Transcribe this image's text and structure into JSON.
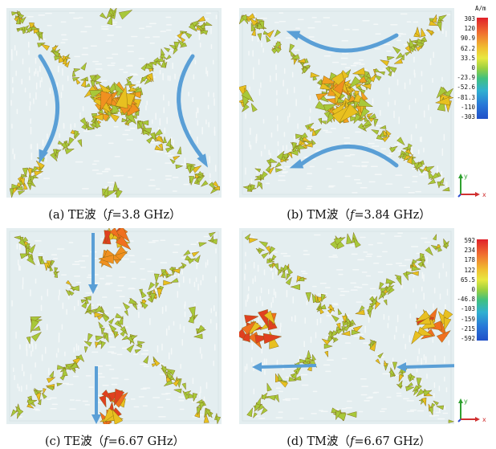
{
  "panels": [
    {
      "id": "a",
      "caption_prefix": "(a) TE波（",
      "f_symbol": "f",
      "caption_suffix": "=3.8 GHz）"
    },
    {
      "id": "b",
      "caption_prefix": "(b) TM波（",
      "f_symbol": "f",
      "caption_suffix": "=3.84 GHz）"
    },
    {
      "id": "c",
      "caption_prefix": "(c) TE波（",
      "f_symbol": "f",
      "caption_suffix": "=6.67 GHz）"
    },
    {
      "id": "d",
      "caption_prefix": "(d) TM波（",
      "f_symbol": "f",
      "caption_suffix": "=6.67 GHz）"
    }
  ],
  "colorbar_top": {
    "unit": "A/m",
    "ticks": [
      "303",
      "120",
      "90.9",
      "62.2",
      "33.5",
      "0",
      "-23.9",
      "-52.6",
      "-81.3",
      "-110",
      "-303"
    ]
  },
  "colorbar_bottom": {
    "ticks": [
      "592",
      "234",
      "178",
      "122",
      "65.5",
      "0",
      "-46.8",
      "-103",
      "-159",
      "-215",
      "-592"
    ]
  },
  "axis_labels": {
    "y": "y",
    "x": "x"
  },
  "colors": {
    "panel_bg": "#e4eef0",
    "arrow_flow": "#5a9fd6",
    "field_low": "#a8c83a",
    "field_mid": "#e8c020",
    "field_high": "#e04020"
  }
}
